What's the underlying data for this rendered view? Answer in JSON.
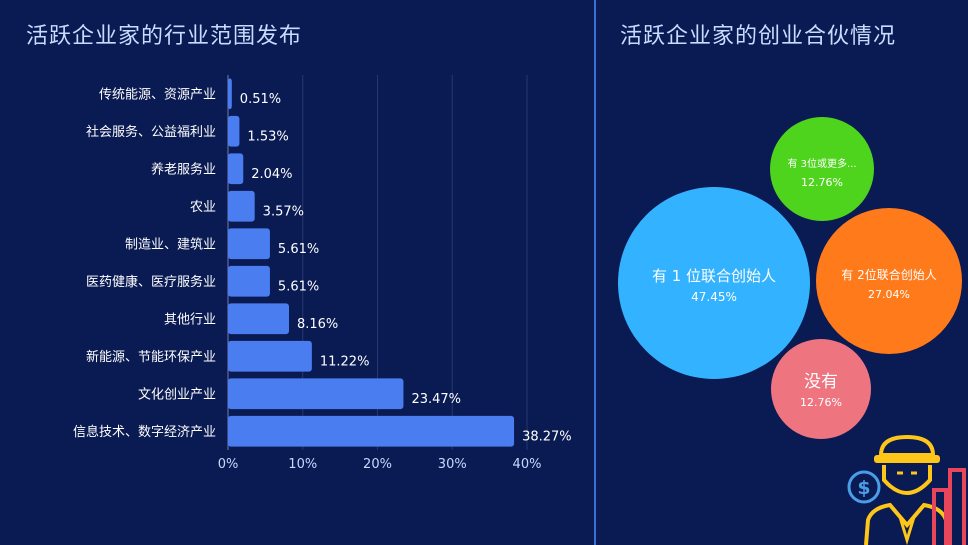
{
  "left_panel": {
    "title": "活跃企业家的行业范围发布"
  },
  "right_panel": {
    "title": "活跃企业家的创业合伙情况"
  },
  "chart_data": [
    {
      "type": "bar",
      "orientation": "horizontal",
      "categories": [
        "传统能源、资源产业",
        "社会服务、公益福利业",
        "养老服务业",
        "农业",
        "制造业、建筑业",
        "医药健康、医疗服务业",
        "其他行业",
        "新能源、节能环保产业",
        "文化创业产业",
        "信息技术、数字经济产业"
      ],
      "values": [
        0.51,
        1.53,
        2.04,
        3.57,
        5.61,
        5.61,
        8.16,
        11.22,
        23.47,
        38.27
      ],
      "value_labels": [
        "0.51%",
        "1.53%",
        "2.04%",
        "3.57%",
        "5.61%",
        "5.61%",
        "8.16%",
        "11.22%",
        "23.47%",
        "38.27%"
      ],
      "xlim": [
        0,
        40
      ],
      "xticks": [
        "0%",
        "10%",
        "20%",
        "30%",
        "40%"
      ],
      "grid": true,
      "bar_color": "#4a7ef0"
    },
    {
      "type": "bubble",
      "items": [
        {
          "label": "有 1 位联合创始人",
          "value_label": "47.45%",
          "value": 47.45,
          "color": "#33b2ff"
        },
        {
          "label": "有 2位联合创始人",
          "value_label": "27.04%",
          "value": 27.04,
          "color": "#ff7a1a"
        },
        {
          "label": "有 3位或更多...",
          "value_label": "12.76%",
          "value": 12.76,
          "color": "#4fd41e"
        },
        {
          "label": "没有",
          "value_label": "12.76%",
          "value": 12.76,
          "color": "#ee7480"
        }
      ]
    }
  ],
  "decoration": {
    "icon": "businessman-with-dollar-icon",
    "color": "#ffc61a",
    "accent_color": "#e8465a"
  }
}
